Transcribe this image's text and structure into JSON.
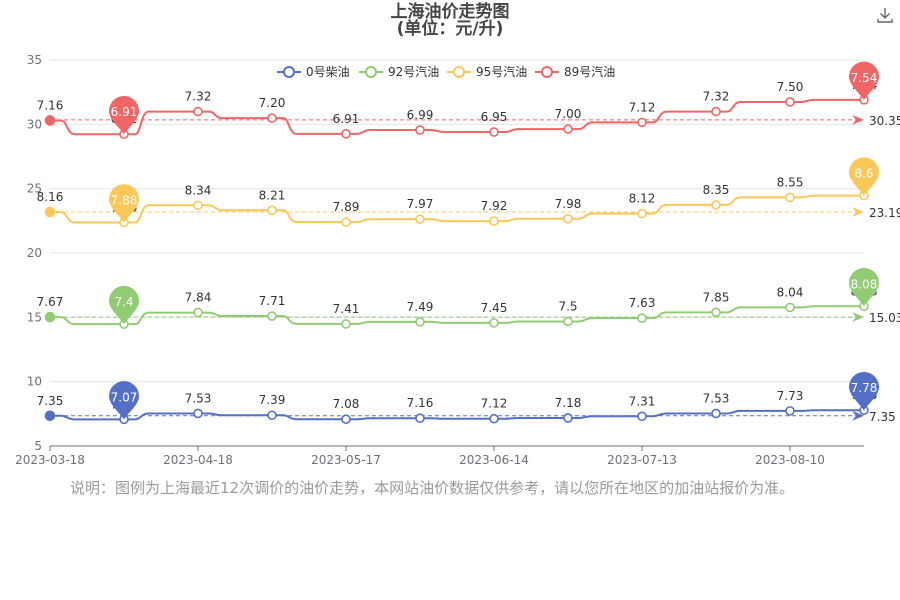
{
  "title": "上海油价走势图",
  "subtitle": "(单位：元/升)",
  "note": "说明：图例为上海最近12次调价的油价走势，本网站油价数据仅供参考，请以您所在地区的加油站报价为准。",
  "download_icon": "download-icon",
  "chart_data": {
    "type": "line",
    "title": "上海油价走势图",
    "subtitle": "(单位：元/升)",
    "xlabel": "",
    "ylabel": "",
    "ylim": [
      5,
      35
    ],
    "yticks": [
      5,
      10,
      15,
      20,
      25,
      30,
      35
    ],
    "x_ticks": [
      "2023-03-18",
      "2023-04-18",
      "2023-05-17",
      "2023-06-14",
      "2023-07-13",
      "2023-08-10"
    ],
    "grid": true,
    "legend_position": "top",
    "series": [
      {
        "name": "0号柴油",
        "color": "#5470c6",
        "labels": [
          "7.35",
          "7.07",
          "7.53",
          "7.39",
          "7.08",
          "7.16",
          "7.12",
          "7.18",
          "7.31",
          "7.53",
          "7.73",
          "7.78"
        ],
        "values": [
          7.35,
          7.07,
          7.53,
          7.39,
          7.08,
          7.16,
          7.12,
          7.18,
          7.31,
          7.53,
          7.73,
          7.78
        ],
        "min_pin": "7.07",
        "max_pin": "7.78",
        "average_label": "7.35",
        "average_value": 7.35
      },
      {
        "name": "92号汽油",
        "color": "#91cc75",
        "labels": [
          "7.67",
          "7.4",
          "7.84",
          "7.71",
          "7.41",
          "7.49",
          "7.45",
          "7.5",
          "7.63",
          "7.85",
          "8.04",
          "8.08"
        ],
        "values": [
          15.02,
          14.47,
          15.37,
          15.1,
          14.49,
          14.65,
          14.57,
          14.68,
          14.94,
          15.39,
          15.77,
          15.86
        ],
        "min_pin": "7.4",
        "max_pin": "8.08",
        "average_label": "15.03",
        "average_value": 15.03
      },
      {
        "name": "95号汽油",
        "color": "#fac858",
        "labels": [
          "8.16",
          "7.88",
          "8.34",
          "8.21",
          "7.89",
          "7.97",
          "7.92",
          "7.98",
          "8.12",
          "8.35",
          "8.55",
          "8.6"
        ],
        "values": [
          23.18,
          22.37,
          23.71,
          23.32,
          22.4,
          22.63,
          22.48,
          22.66,
          23.06,
          23.74,
          24.32,
          24.46
        ],
        "min_pin": "7.88",
        "max_pin": "8.6",
        "average_label": "23.19",
        "average_value": 23.19
      },
      {
        "name": "89号汽油",
        "color": "#ee6666",
        "labels": [
          "7.16",
          "6.91",
          "7.32",
          "7.20",
          "6.91",
          "6.99",
          "6.95",
          "7.00",
          "7.12",
          "7.32",
          "7.50",
          "7.54"
        ],
        "values": [
          30.3,
          29.23,
          30.99,
          30.48,
          29.26,
          29.56,
          29.4,
          29.63,
          30.15,
          30.99,
          31.74,
          31.9
        ],
        "min_pin": "6.91",
        "max_pin": "7.54",
        "average_label": "30.35",
        "average_value": 30.35
      }
    ]
  }
}
